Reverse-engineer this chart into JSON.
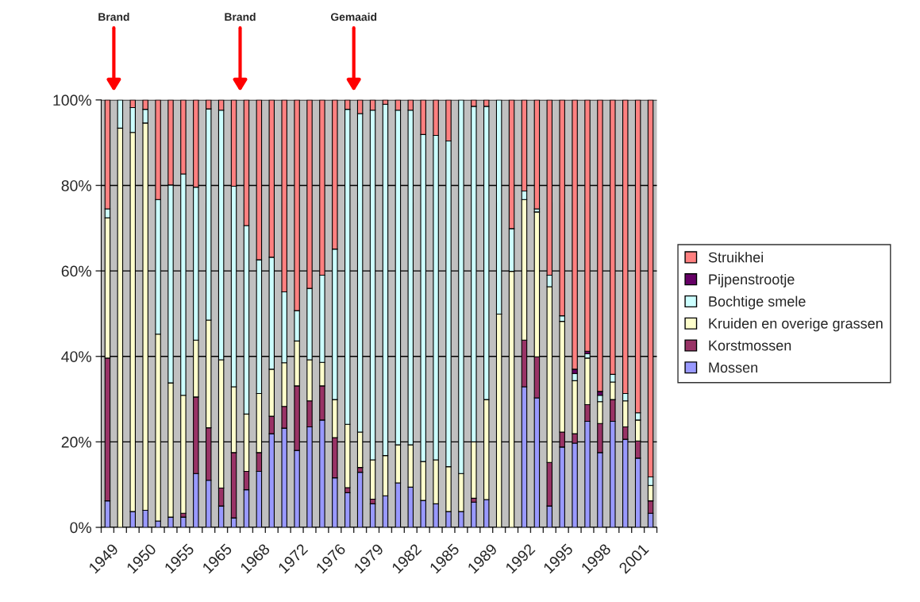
{
  "chart_data": {
    "type": "bar",
    "stacked": true,
    "categories": [
      "1949",
      null,
      null,
      "1950",
      null,
      null,
      "1955",
      null,
      null,
      "1965",
      null,
      null,
      "1968",
      null,
      null,
      "1972",
      null,
      null,
      "1976",
      null,
      null,
      "1979",
      null,
      null,
      "1982",
      null,
      null,
      "1985",
      null,
      null,
      "1989",
      null,
      null,
      "1992",
      null,
      null,
      "1995",
      null,
      null,
      "1998",
      null,
      null,
      "2001",
      null
    ],
    "series": [
      {
        "name": "Mossen",
        "color": "#9999ff",
        "values": [
          6.2,
          0,
          3.7,
          4.0,
          1.5,
          2.4,
          2.4,
          12.6,
          11.0,
          5.0,
          2.2,
          8.8,
          13.1,
          21.9,
          23.2,
          18.0,
          23.5,
          25.1,
          11.6,
          8.1,
          12.9,
          5.5,
          7.4,
          10.4,
          9.4,
          6.3,
          5.5,
          3.7,
          3.7,
          5.9,
          6.5,
          0,
          0,
          32.9,
          30.3,
          5.0,
          18.8,
          19.7,
          24.8,
          17.5,
          24.8,
          20.6,
          16.2,
          3.3
        ]
      },
      {
        "name": "Korstmossen",
        "color": "#993366",
        "values": [
          33.4,
          0,
          0,
          0,
          0,
          0,
          0.9,
          17.9,
          12.3,
          4.2,
          15.3,
          4.3,
          4.4,
          4.1,
          5.1,
          15.1,
          6.1,
          8.0,
          9.4,
          1.2,
          1.1,
          1.1,
          0,
          0,
          0,
          0,
          0,
          0,
          0,
          0.9,
          0,
          0,
          0,
          10.9,
          9.6,
          10.2,
          3.5,
          2.2,
          3.9,
          6.8,
          5.1,
          2.9,
          4.0,
          2.9
        ]
      },
      {
        "name": "Kruiden en overige grassen",
        "color": "#ffffcc",
        "values": [
          32.8,
          93.4,
          88.7,
          90.6,
          43.7,
          31.4,
          27.6,
          13.3,
          25.2,
          30.0,
          15.4,
          13.4,
          13.8,
          11.0,
          10.2,
          10.5,
          9.6,
          5.5,
          8.9,
          14.8,
          8.3,
          9.2,
          9.4,
          8.9,
          9.9,
          9.1,
          10.3,
          10.5,
          8.9,
          13.2,
          23.4,
          49.9,
          59.9,
          32.9,
          33.9,
          41.1,
          25.9,
          12.4,
          10.9,
          5.1,
          4.1,
          6.1,
          4.9,
          3.6
        ]
      },
      {
        "name": "Bochtige smele",
        "color": "#ccffff",
        "values": [
          2.1,
          6.6,
          5.8,
          3.2,
          31.5,
          46.3,
          51.8,
          35.8,
          49.4,
          58.4,
          46.9,
          44.1,
          31.3,
          26.2,
          16.6,
          7.1,
          16.7,
          20.4,
          35.2,
          73.7,
          74.5,
          81.8,
          82.2,
          78.3,
          78.3,
          76.5,
          75.9,
          76.2,
          87.4,
          78.5,
          68.6,
          50.1,
          10.0,
          2.0,
          0.7,
          2.7,
          1.3,
          1.7,
          1.0,
          1.5,
          1.8,
          1.7,
          1.7,
          2.0
        ]
      },
      {
        "name": "Pijpenstrootje",
        "color": "#660066",
        "values": [
          0,
          0,
          0,
          0,
          0,
          0,
          0,
          0,
          0,
          0,
          0,
          0,
          0,
          0,
          0,
          0,
          0,
          0,
          0,
          0,
          0,
          0,
          0,
          0,
          0,
          0,
          0,
          0,
          0,
          0,
          0,
          0,
          0,
          0,
          0,
          0,
          0,
          1.0,
          0.6,
          0.9,
          0,
          0,
          0,
          0
        ]
      },
      {
        "name": "Struikhei",
        "color": "#ff8080",
        "values": [
          25.5,
          0,
          1.8,
          2.2,
          23.3,
          19.9,
          17.3,
          20.4,
          2.1,
          2.4,
          20.2,
          29.4,
          37.4,
          36.8,
          44.9,
          49.3,
          44.1,
          41.0,
          34.9,
          2.2,
          3.2,
          2.4,
          1.0,
          2.4,
          2.4,
          8.1,
          8.3,
          9.6,
          0,
          1.5,
          1.5,
          0,
          30.1,
          21.3,
          25.5,
          41.0,
          50.5,
          63.0,
          58.8,
          68.2,
          64.2,
          68.7,
          73.2,
          88.2
        ]
      }
    ],
    "ylim": [
      0,
      100
    ],
    "yticks": [
      {
        "value": 0,
        "label": "0%"
      },
      {
        "value": 20,
        "label": "20%"
      },
      {
        "value": 40,
        "label": "40%"
      },
      {
        "value": 60,
        "label": "60%"
      },
      {
        "value": 80,
        "label": "80%"
      },
      {
        "value": 100,
        "label": "100%"
      }
    ],
    "grid": "y",
    "legend": "right",
    "annotations": [
      "Brand",
      "Brand",
      "Gemaaid"
    ]
  }
}
